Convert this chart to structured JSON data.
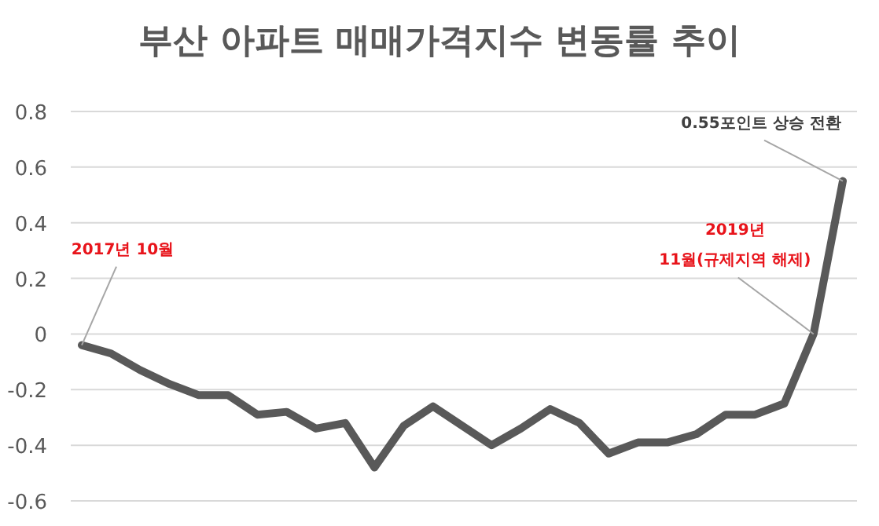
{
  "chart_data": {
    "type": "line",
    "title": "부산 아파트 매매가격지수 변동률 추이",
    "categories": [
      null,
      null,
      null,
      null,
      null,
      null,
      null,
      null,
      null,
      null,
      null,
      null,
      null,
      null,
      null,
      null,
      null,
      null,
      null,
      null,
      null,
      null,
      null,
      null,
      null,
      null,
      null
    ],
    "series": [
      {
        "color": "#595959",
        "values": [
          -0.04,
          -0.07,
          -0.13,
          -0.18,
          -0.22,
          -0.22,
          -0.29,
          -0.28,
          -0.34,
          -0.32,
          -0.48,
          -0.33,
          -0.26,
          -0.33,
          -0.4,
          -0.34,
          -0.27,
          -0.32,
          -0.43,
          -0.39,
          -0.39,
          -0.36,
          -0.29,
          -0.29,
          -0.25,
          0,
          0.55
        ]
      }
    ],
    "ylim": [
      -0.6,
      0.8
    ],
    "yticks": [
      -0.6,
      -0.4,
      -0.2,
      0,
      0.2,
      0.4,
      0.6,
      0.8
    ],
    "grid": "y",
    "marker": "none",
    "line_style": "solid",
    "tick_labels": "y",
    "annotations": [
      "2017년 10월",
      "2019년 11월(규제지역 해제)",
      "0.55포인트 상승 전환"
    ]
  }
}
